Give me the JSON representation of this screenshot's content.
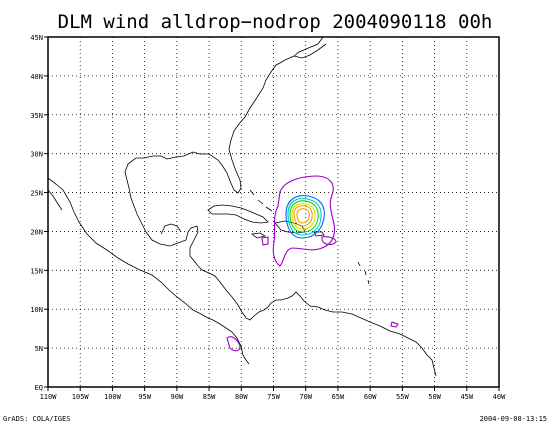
{
  "title": "DLM wind alldrop−nodrop 2004090118 00h",
  "footer_left": "GrADS: COLA/IGES",
  "footer_right": "2004-09-08-13:15",
  "axes": {
    "lon_labels": [
      "110W",
      "105W",
      "100W",
      "95W",
      "90W",
      "85W",
      "80W",
      "75W",
      "70W",
      "65W",
      "60W",
      "55W",
      "50W",
      "45W",
      "40W"
    ],
    "lat_labels": [
      "EQ",
      "5N",
      "10N",
      "15N",
      "20N",
      "25N",
      "30N",
      "35N",
      "40N",
      "45N"
    ]
  },
  "colors": {
    "coast": "#000000",
    "grid": "#000000",
    "contour_outer": "#a000c8",
    "contour_blue": "#0064ff",
    "contour_cyan": "#00c8c8",
    "contour_green": "#00dc00",
    "contour_yellow": "#dcdc00",
    "contour_orange": "#f0a000"
  }
}
